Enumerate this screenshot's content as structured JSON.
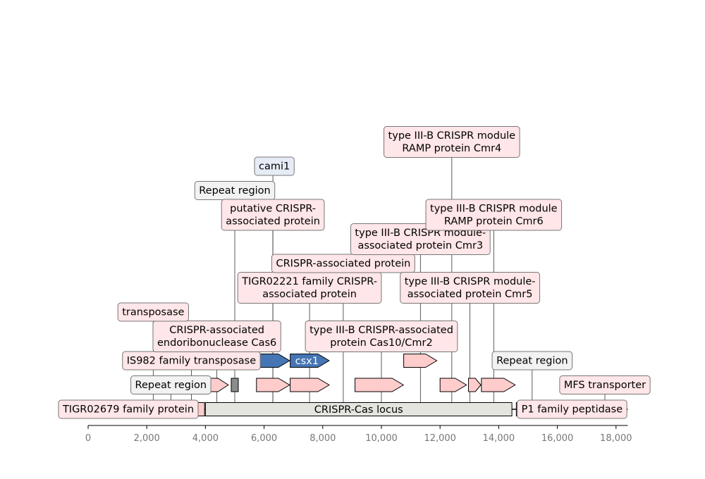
{
  "colors": {
    "gene": "#ffcccc",
    "gene_highlight": "#4575b4",
    "repeat": "#8c8c8c",
    "locus": "#e5e5e0",
    "label_pink": "#ffe6e8",
    "label_grey": "#f2f2f2",
    "label_blue": "#e6ecf5"
  },
  "axis": {
    "min": 0,
    "max": 18400,
    "ticks": [
      0,
      2000,
      4000,
      6000,
      8000,
      10000,
      12000,
      14000,
      16000,
      18000
    ],
    "tick_labels": [
      "0",
      "2,000",
      "4,000",
      "6,000",
      "8,000",
      "10,000",
      "12,000",
      "14,000",
      "16,000",
      "18,000"
    ]
  },
  "locus": {
    "label": "CRISPR-Cas locus",
    "start": 4000,
    "end": 14450
  },
  "features": [
    {
      "id": "f1",
      "type": "gene",
      "start": 750,
      "end": 1990,
      "strand": 1,
      "row": 0
    },
    {
      "id": "f2",
      "type": "gene",
      "start": 2020,
      "end": 2420,
      "strand": 1,
      "row": 0
    },
    {
      "id": "f3",
      "type": "repeat",
      "start": 2600,
      "end": 3030,
      "strand": 0,
      "row": 0
    },
    {
      "id": "f4",
      "type": "gene",
      "start": 3080,
      "end": 3970,
      "strand": -1,
      "row": 0
    },
    {
      "id": "f5",
      "type": "gene",
      "start": 4000,
      "end": 4780,
      "strand": 1,
      "row": 1
    },
    {
      "id": "f6",
      "type": "repeat",
      "start": 4880,
      "end": 5120,
      "strand": 0,
      "row": 1
    },
    {
      "id": "f7",
      "type": "gene",
      "start": 5740,
      "end": 6870,
      "strand": 1,
      "row": 1
    },
    {
      "id": "f8",
      "type": "gene",
      "start": 6890,
      "end": 8220,
      "strand": 1,
      "row": 1
    },
    {
      "id": "f9",
      "type": "gene",
      "start": 9100,
      "end": 10750,
      "strand": 1,
      "row": 1
    },
    {
      "id": "f10",
      "type": "gene",
      "start": 12000,
      "end": 12900,
      "strand": 1,
      "row": 1
    },
    {
      "id": "f11",
      "type": "gene",
      "start": 12970,
      "end": 13390,
      "strand": 1,
      "row": 1
    },
    {
      "id": "f12",
      "type": "gene",
      "start": 13410,
      "end": 14560,
      "strand": 1,
      "row": 1
    },
    {
      "id": "f13",
      "type": "gene_highlight",
      "start": 5740,
      "end": 6870,
      "strand": 1,
      "row": 2
    },
    {
      "id": "f14",
      "type": "gene_highlight",
      "start": 6890,
      "end": 8220,
      "strand": 1,
      "row": 2,
      "inner_label": "csx1"
    },
    {
      "id": "f15",
      "type": "gene",
      "start": 10760,
      "end": 11890,
      "strand": 1,
      "row": 2
    },
    {
      "id": "f16",
      "type": "gene",
      "start": 8250,
      "end": 9150,
      "strand": 1,
      "row": 3
    },
    {
      "id": "f17",
      "type": "repeat",
      "start": 14600,
      "end": 15680,
      "strand": 0,
      "row": 0
    },
    {
      "id": "f18",
      "type": "gene",
      "start": 15960,
      "end": 17030,
      "strand": 1,
      "row": 0
    },
    {
      "id": "f19",
      "type": "gene",
      "start": 17060,
      "end": 18140,
      "strand": -1,
      "row": 0
    },
    {
      "id": "f20",
      "type": "gene",
      "start": 18160,
      "end": 18300,
      "strand": -1,
      "row": 0
    }
  ],
  "labels": [
    {
      "id": "l1",
      "text": [
        "TIGR02679 family protein"
      ],
      "bg": "label_pink",
      "anchor": 1370,
      "row": 0,
      "center": 1370
    },
    {
      "id": "l2",
      "text": [
        "Repeat region"
      ],
      "bg": "label_grey",
      "anchor": 2820,
      "row": 1,
      "center": 2820
    },
    {
      "id": "l3",
      "text": [
        "IS982 family transposase"
      ],
      "bg": "label_pink",
      "anchor": 3520,
      "row": 2,
      "center": 3520
    },
    {
      "id": "l4",
      "text": [
        "CRISPR-associated",
        "endoribonuclease Cas6"
      ],
      "bg": "label_pink",
      "anchor": 4390,
      "row": 3,
      "center": 4390
    },
    {
      "id": "l5",
      "text": [
        "transposase"
      ],
      "bg": "label_pink",
      "anchor": 2220,
      "row": 4,
      "center": 2220
    },
    {
      "id": "l6",
      "text": [
        "Repeat region"
      ],
      "bg": "label_grey",
      "anchor": 5000,
      "row": 9,
      "center": 5000
    },
    {
      "id": "l7",
      "text": [
        "cami1"
      ],
      "bg": "label_blue",
      "anchor": 6300,
      "row": 10,
      "center": 6350
    },
    {
      "id": "l8",
      "text": [
        "putative CRISPR-",
        "associated protein"
      ],
      "bg": "label_pink",
      "anchor": 6300,
      "row": 8,
      "center": 6300
    },
    {
      "id": "l9",
      "text": [
        "TIGR02221 family CRISPR-",
        "associated protein"
      ],
      "bg": "label_pink",
      "anchor": 7550,
      "row": 5,
      "center": 7550
    },
    {
      "id": "l10",
      "text": [
        "CRISPR-associated protein"
      ],
      "bg": "label_pink",
      "anchor": 8700,
      "row": 6,
      "center": 8700
    },
    {
      "id": "l11",
      "text": [
        "type III-B CRISPR-associated",
        "protein Cas10/Cmr2"
      ],
      "bg": "label_pink",
      "anchor": 10000,
      "row": 3,
      "center": 10000
    },
    {
      "id": "l12",
      "text": [
        "type III-B CRISPR module-",
        "associated protein Cmr3"
      ],
      "bg": "label_pink",
      "anchor": 11330,
      "row": 7,
      "center": 11330
    },
    {
      "id": "l13",
      "text": [
        "type III-B CRISPR module-",
        "associated protein Cmr5"
      ],
      "bg": "label_pink",
      "anchor": 13020,
      "row": 5,
      "center": 13020
    },
    {
      "id": "l14",
      "text": [
        "type III-B CRISPR module",
        "RAMP protein Cmr6"
      ],
      "bg": "label_pink",
      "anchor": 13830,
      "row": 8,
      "center": 13830
    },
    {
      "id": "l15",
      "text": [
        "type III-B CRISPR module",
        "RAMP protein Cmr4"
      ],
      "bg": "label_pink",
      "anchor": 12400,
      "row": 11,
      "center": 12400
    },
    {
      "id": "l16",
      "text": [
        "Repeat region"
      ],
      "bg": "label_grey",
      "anchor": 15140,
      "row": 2,
      "center": 15140
    },
    {
      "id": "l17",
      "text": [
        "P1 family peptidase"
      ],
      "bg": "label_pink",
      "anchor": 16500,
      "row": 0,
      "center": 16500
    },
    {
      "id": "l18",
      "text": [
        "MFS transporter"
      ],
      "bg": "label_pink",
      "anchor": 17620,
      "row": 1,
      "center": 17620
    }
  ]
}
